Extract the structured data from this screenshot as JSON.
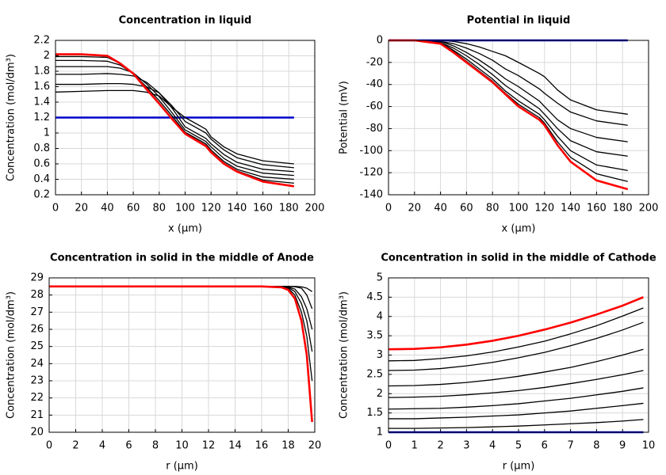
{
  "chart_data": [
    {
      "type": "line",
      "title": "Concentration in liquid",
      "x_label": "x (µm)",
      "y_label": "Concentration (mol/dm³)",
      "x": [
        0,
        20,
        40,
        50,
        60,
        70,
        80,
        90,
        100,
        116,
        120,
        130,
        140,
        160,
        184
      ],
      "xlim": [
        0,
        200
      ],
      "xticks": [
        0,
        20,
        40,
        60,
        80,
        100,
        120,
        140,
        160,
        180,
        200
      ],
      "ylim": [
        0.2,
        2.2
      ],
      "yticks": [
        0.2,
        0.4,
        0.6,
        0.8,
        1,
        1.2,
        1.4,
        1.6,
        1.8,
        2,
        2.2
      ],
      "grid": true,
      "series": [
        {
          "color": "#0000cc",
          "values": [
            1.2,
            1.2,
            1.2,
            1.2,
            1.2,
            1.2,
            1.2,
            1.2,
            1.2,
            1.2,
            1.2,
            1.2,
            1.2,
            1.2,
            1.2
          ]
        },
        {
          "color": "#000000",
          "values": [
            1.53,
            1.54,
            1.55,
            1.55,
            1.55,
            1.53,
            1.48,
            1.33,
            1.2,
            1.05,
            0.95,
            0.82,
            0.73,
            0.64,
            0.6
          ]
        },
        {
          "color": "#000000",
          "values": [
            1.63,
            1.63,
            1.64,
            1.64,
            1.63,
            1.6,
            1.52,
            1.35,
            1.15,
            1.0,
            0.92,
            0.78,
            0.68,
            0.59,
            0.55
          ]
        },
        {
          "color": "#000000",
          "values": [
            1.76,
            1.76,
            1.77,
            1.76,
            1.74,
            1.66,
            1.52,
            1.32,
            1.08,
            0.93,
            0.86,
            0.72,
            0.62,
            0.53,
            0.5
          ]
        },
        {
          "color": "#000000",
          "values": [
            1.86,
            1.86,
            1.86,
            1.84,
            1.78,
            1.64,
            1.47,
            1.26,
            1.04,
            0.89,
            0.82,
            0.67,
            0.57,
            0.48,
            0.45
          ]
        },
        {
          "color": "#000000",
          "values": [
            1.94,
            1.94,
            1.93,
            1.88,
            1.77,
            1.6,
            1.42,
            1.22,
            1.01,
            0.86,
            0.78,
            0.63,
            0.53,
            0.43,
            0.4
          ]
        },
        {
          "color": "#000000",
          "values": [
            1.99,
            1.99,
            1.98,
            1.9,
            1.77,
            1.58,
            1.39,
            1.19,
            1.0,
            0.84,
            0.76,
            0.61,
            0.51,
            0.39,
            0.35
          ]
        },
        {
          "color": "#ff0000",
          "values": [
            2.02,
            2.02,
            2.0,
            1.9,
            1.77,
            1.57,
            1.38,
            1.18,
            0.99,
            0.83,
            0.75,
            0.6,
            0.5,
            0.37,
            0.31
          ]
        }
      ]
    },
    {
      "type": "line",
      "title": "Potential in liquid",
      "x_label": "x (µm)",
      "y_label": "Potential (mV)",
      "x": [
        0,
        20,
        40,
        50,
        60,
        70,
        80,
        90,
        100,
        116,
        120,
        130,
        140,
        160,
        184
      ],
      "xlim": [
        0,
        200
      ],
      "xticks": [
        0,
        20,
        40,
        60,
        80,
        100,
        120,
        140,
        160,
        180,
        200
      ],
      "ylim": [
        -140,
        0
      ],
      "yticks": [
        -140,
        -120,
        -100,
        -80,
        -60,
        -40,
        -20,
        0
      ],
      "grid": true,
      "series": [
        {
          "color": "#000000",
          "values": [
            0,
            0,
            0,
            -1,
            -3,
            -6,
            -10,
            -14,
            -20,
            -30,
            -33,
            -45,
            -54,
            -63,
            -67
          ]
        },
        {
          "color": "#000000",
          "values": [
            0,
            0,
            -1,
            -3,
            -7,
            -12,
            -18,
            -26,
            -32,
            -44,
            -48,
            -57,
            -65,
            -73,
            -77
          ]
        },
        {
          "color": "#000000",
          "values": [
            0,
            0,
            -1,
            -5,
            -11,
            -18,
            -26,
            -35,
            -42,
            -55,
            -60,
            -72,
            -80,
            -88,
            -92
          ]
        },
        {
          "color": "#000000",
          "values": [
            0,
            0,
            -2,
            -7,
            -14,
            -22,
            -31,
            -41,
            -49,
            -62,
            -67,
            -80,
            -91,
            -101,
            -105
          ]
        },
        {
          "color": "#000000",
          "values": [
            0,
            0,
            -2,
            -9,
            -17,
            -26,
            -35,
            -46,
            -55,
            -67,
            -72,
            -87,
            -100,
            -113,
            -118
          ]
        },
        {
          "color": "#000000",
          "values": [
            0,
            0,
            -3,
            -10,
            -19,
            -28,
            -37,
            -48,
            -58,
            -70,
            -75,
            -92,
            -106,
            -121,
            -128
          ]
        },
        {
          "color": "#0000cc",
          "values": [
            0,
            0,
            0,
            0,
            0,
            0,
            0,
            0,
            0,
            0,
            0,
            0,
            0,
            0,
            0
          ]
        },
        {
          "color": "#ff0000",
          "values": [
            0,
            0,
            -3,
            -11,
            -20,
            -29,
            -38,
            -49,
            -60,
            -72,
            -77,
            -95,
            -110,
            -127,
            -135
          ]
        }
      ]
    },
    {
      "type": "line",
      "title": "Concentration in solid in the middle of Anode",
      "x_label": "r (µm)",
      "y_label": "Concentration (mol/dm³)",
      "x": [
        0,
        4,
        8,
        12,
        16,
        17.5,
        18,
        18.5,
        19,
        19.4,
        19.8
      ],
      "xlim": [
        0,
        20
      ],
      "xticks": [
        0,
        2,
        4,
        6,
        8,
        10,
        12,
        14,
        16,
        18,
        20
      ],
      "ylim": [
        20,
        29
      ],
      "yticks": [
        20,
        21,
        22,
        23,
        24,
        25,
        26,
        27,
        28,
        29
      ],
      "grid": true,
      "series": [
        {
          "color": "#000000",
          "values": [
            28.5,
            28.5,
            28.5,
            28.5,
            28.5,
            28.5,
            28.5,
            28.5,
            28.48,
            28.4,
            28.2
          ]
        },
        {
          "color": "#000000",
          "values": [
            28.5,
            28.5,
            28.5,
            28.5,
            28.5,
            28.5,
            28.5,
            28.48,
            28.4,
            28.0,
            27.2
          ]
        },
        {
          "color": "#000000",
          "values": [
            28.5,
            28.5,
            28.5,
            28.5,
            28.5,
            28.5,
            28.47,
            28.35,
            27.9,
            27.2,
            26.0
          ]
        },
        {
          "color": "#000000",
          "values": [
            28.5,
            28.5,
            28.5,
            28.5,
            28.5,
            28.5,
            28.45,
            28.2,
            27.5,
            26.5,
            24.7
          ]
        },
        {
          "color": "#000000",
          "values": [
            28.5,
            28.5,
            28.5,
            28.5,
            28.5,
            28.48,
            28.4,
            28.0,
            27.0,
            25.6,
            23.0
          ]
        },
        {
          "color": "#ff0000",
          "values": [
            28.5,
            28.5,
            28.5,
            28.5,
            28.5,
            28.45,
            28.3,
            27.8,
            26.5,
            24.5,
            20.6
          ]
        }
      ]
    },
    {
      "type": "line",
      "title": "Concentration in solid in the middle of Cathode",
      "x_label": "r (µm)",
      "y_label": "Concentration (mol/dm³)",
      "x": [
        0,
        1,
        2,
        3,
        4,
        5,
        6,
        7,
        8,
        9,
        9.8
      ],
      "xlim": [
        0,
        10
      ],
      "xticks": [
        0,
        1,
        2,
        3,
        4,
        5,
        6,
        7,
        8,
        9,
        10
      ],
      "ylim": [
        1,
        5
      ],
      "yticks": [
        1,
        1.5,
        2,
        2.5,
        3,
        3.5,
        4,
        4.5,
        5
      ],
      "grid": true,
      "series": [
        {
          "color": "#0000cc",
          "values": [
            1,
            1,
            1,
            1,
            1,
            1,
            1,
            1,
            1,
            1,
            1
          ]
        },
        {
          "color": "#000000",
          "values": [
            1.1,
            1.1,
            1.11,
            1.12,
            1.14,
            1.16,
            1.19,
            1.22,
            1.25,
            1.29,
            1.33
          ]
        },
        {
          "color": "#000000",
          "values": [
            1.35,
            1.35,
            1.37,
            1.39,
            1.42,
            1.45,
            1.5,
            1.55,
            1.62,
            1.69,
            1.75
          ]
        },
        {
          "color": "#000000",
          "values": [
            1.6,
            1.61,
            1.62,
            1.65,
            1.69,
            1.74,
            1.81,
            1.88,
            1.97,
            2.06,
            2.15
          ]
        },
        {
          "color": "#000000",
          "values": [
            1.9,
            1.91,
            1.93,
            1.97,
            2.02,
            2.08,
            2.16,
            2.26,
            2.37,
            2.49,
            2.6
          ]
        },
        {
          "color": "#000000",
          "values": [
            2.2,
            2.21,
            2.24,
            2.29,
            2.36,
            2.45,
            2.56,
            2.68,
            2.83,
            3.0,
            3.15
          ]
        },
        {
          "color": "#000000",
          "values": [
            2.6,
            2.61,
            2.65,
            2.72,
            2.81,
            2.93,
            3.07,
            3.24,
            3.43,
            3.65,
            3.85
          ]
        },
        {
          "color": "#000000",
          "values": [
            2.85,
            2.86,
            2.91,
            2.98,
            3.08,
            3.21,
            3.36,
            3.55,
            3.76,
            4.01,
            4.22
          ]
        },
        {
          "color": "#ff0000",
          "values": [
            3.15,
            3.16,
            3.2,
            3.27,
            3.37,
            3.5,
            3.66,
            3.84,
            4.05,
            4.28,
            4.5
          ]
        }
      ]
    }
  ]
}
